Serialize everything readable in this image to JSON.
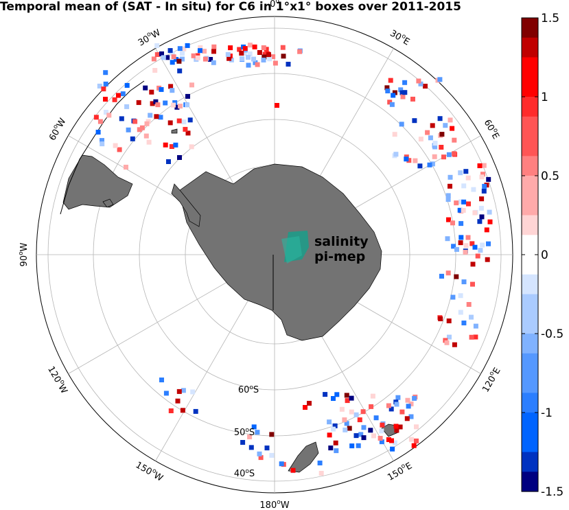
{
  "title": "Temporal mean of (SAT - In situ) for C6 in 1°x1° boxes over 2011-2015",
  "map": {
    "projection": "south-polar-stereographic",
    "meridian_labels": [
      "0°",
      "30°E",
      "60°E",
      "90°E",
      "120°E",
      "150°E",
      "180°W",
      "150°W",
      "120°W",
      "90°W",
      "60°W",
      "30°W"
    ],
    "parallel_labels": [
      "60°S",
      "50°S",
      "40°S"
    ],
    "land_color": "#737373",
    "ocean_color": "#ffffff",
    "grid_color": "#b4b4b4"
  },
  "logo": {
    "line1": "salinity",
    "line2": "pi-mep",
    "color": "#1a9e8a"
  },
  "colorbar": {
    "min": -1.5,
    "max": 1.5,
    "tick_labels": [
      "1.5",
      "1",
      "0.5",
      "0",
      "-0.5",
      "-1",
      "-1.5"
    ],
    "tick_values": [
      1.5,
      1,
      0.5,
      0,
      -0.5,
      -1,
      -1.5
    ],
    "colormap": "blue-white-red"
  }
}
